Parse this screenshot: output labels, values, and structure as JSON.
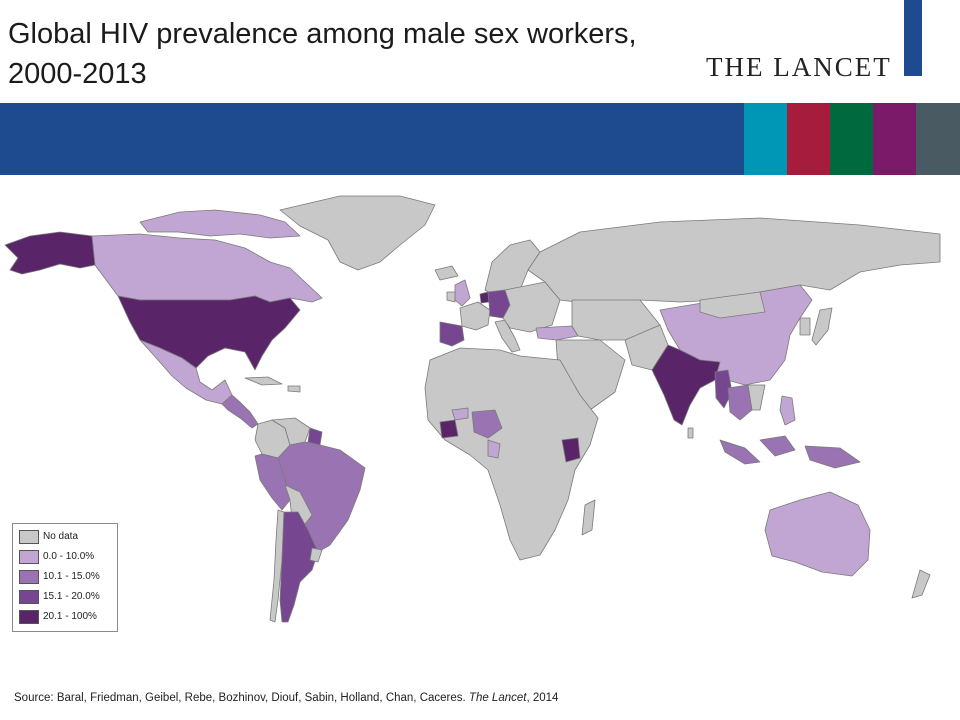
{
  "header": {
    "title_line1": "Global HIV prevalence among male sex workers,",
    "title_line2": "2000-2013",
    "logo": "THE LANCET"
  },
  "colors": {
    "banner": "#1e4b8f",
    "stripes": [
      "#0097b7",
      "#a51c3c",
      "#006a3f",
      "#7a1a68",
      "#4a5a62"
    ],
    "no_data": "#c8c8c8",
    "ocean": "#ffffff"
  },
  "legend": {
    "items": [
      {
        "label": "No data",
        "color": "#c8c8c8"
      },
      {
        "label": "0.0 - 10.0%",
        "color": "#c1a6d3"
      },
      {
        "label": "10.1 - 15.0%",
        "color": "#9a73b3"
      },
      {
        "label": "15.1 - 20.0%",
        "color": "#764690"
      },
      {
        "label": "20.1 - 100%",
        "color": "#5a2468"
      }
    ]
  },
  "map_data": {
    "type": "choropleth",
    "regions": [
      {
        "name": "United States",
        "category": "20.1 - 100%"
      },
      {
        "name": "India",
        "category": "20.1 - 100%"
      },
      {
        "name": "Côte d'Ivoire",
        "category": "20.1 - 100%"
      },
      {
        "name": "Kenya",
        "category": "20.1 - 100%"
      },
      {
        "name": "Netherlands",
        "category": "20.1 - 100%"
      },
      {
        "name": "Germany",
        "category": "15.1 - 20.0%"
      },
      {
        "name": "Spain",
        "category": "15.1 - 20.0%"
      },
      {
        "name": "Argentina",
        "category": "15.1 - 20.0%"
      },
      {
        "name": "Guyana",
        "category": "15.1 - 20.0%"
      },
      {
        "name": "Myanmar",
        "category": "15.1 - 20.0%"
      },
      {
        "name": "Brazil",
        "category": "10.1 - 15.0%"
      },
      {
        "name": "Peru",
        "category": "10.1 - 15.0%"
      },
      {
        "name": "Nigeria",
        "category": "10.1 - 15.0%"
      },
      {
        "name": "Indonesia",
        "category": "10.1 - 15.0%"
      },
      {
        "name": "Thailand",
        "category": "10.1 - 15.0%"
      },
      {
        "name": "Canada",
        "category": "0.0 - 10.0%"
      },
      {
        "name": "Mexico",
        "category": "0.0 - 10.0%"
      },
      {
        "name": "China",
        "category": "0.0 - 10.0%"
      },
      {
        "name": "Australia",
        "category": "0.0 - 10.0%"
      },
      {
        "name": "Turkey",
        "category": "0.0 - 10.0%"
      }
    ]
  },
  "footer": {
    "source_prefix": "Source: Baral, Friedman, Geibel, Rebe, Bozhinov, Diouf, Sabin, Holland, Chan, Caceres. ",
    "journal": "The Lancet",
    "year": ", 2014"
  }
}
